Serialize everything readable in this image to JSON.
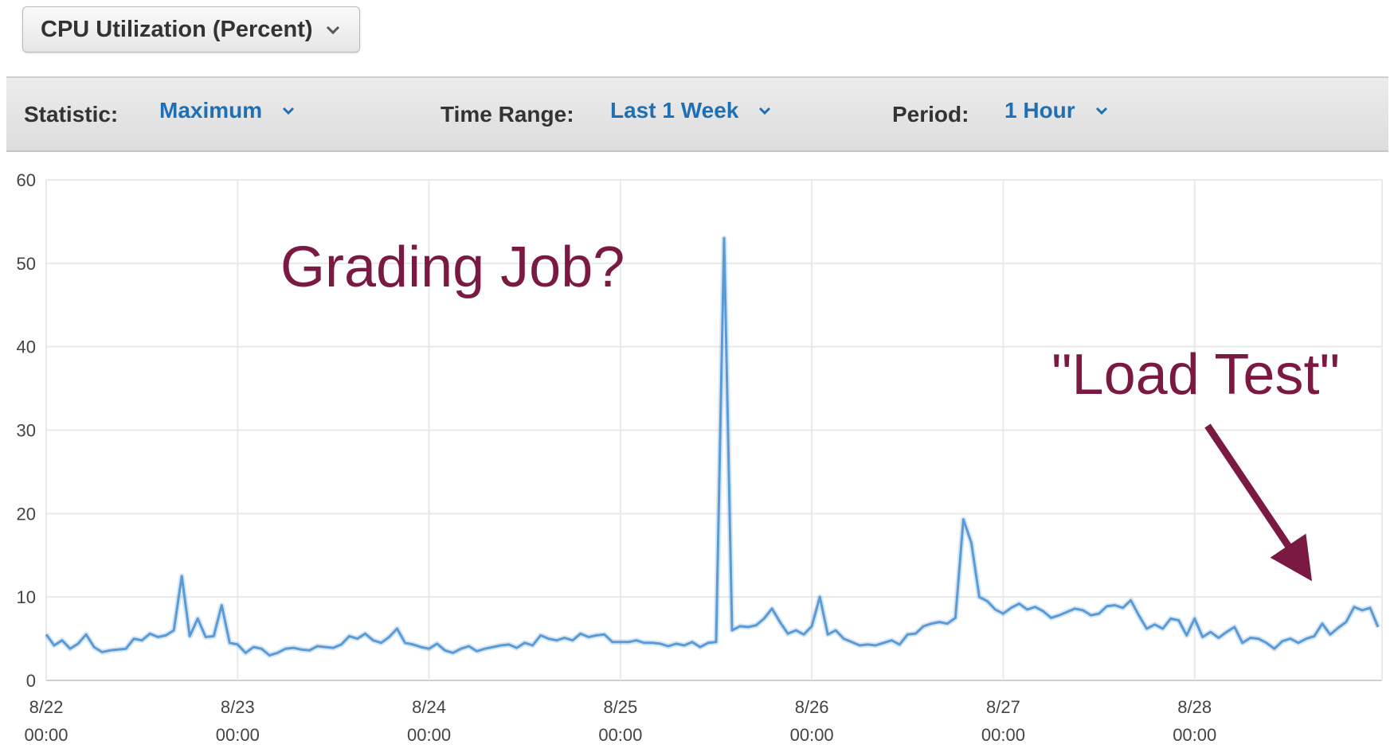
{
  "metric_select": {
    "label": "CPU Utilization (Percent)",
    "icon": "chevron-down-icon"
  },
  "toolbar": {
    "statistic_label": "Statistic:",
    "statistic_value": "Maximum",
    "time_range_label": "Time Range:",
    "time_range_value": "Last 1 Week",
    "period_label": "Period:",
    "period_value": "1 Hour"
  },
  "colors": {
    "line": "#5b9bd5",
    "annotation": "#7a1a42",
    "link": "#1f6fb5"
  },
  "annotations": [
    {
      "text": "Grading Job?"
    },
    {
      "text": "\"Load Test\""
    }
  ],
  "chart_data": {
    "type": "line",
    "grid": true,
    "ylim": [
      0,
      60
    ],
    "yticks": [
      "0",
      "10",
      "20",
      "30",
      "40",
      "50",
      "60"
    ],
    "xlim": [
      0,
      167.5
    ],
    "xticks": [
      {
        "date": "8/22",
        "time": "00:00"
      },
      {
        "date": "8/23",
        "time": "00:00"
      },
      {
        "date": "8/24",
        "time": "00:00"
      },
      {
        "date": "8/25",
        "time": "00:00"
      },
      {
        "date": "8/26",
        "time": "00:00"
      },
      {
        "date": "8/27",
        "time": "00:00"
      },
      {
        "date": "8/28",
        "time": "00:00"
      }
    ],
    "series": [
      {
        "values": [
          [
            0,
            5.5
          ],
          [
            1,
            4.2
          ],
          [
            2,
            4.8
          ],
          [
            3,
            3.8
          ],
          [
            4,
            4.4
          ],
          [
            5,
            5.5
          ],
          [
            6,
            4.0
          ],
          [
            7,
            3.4
          ],
          [
            8,
            3.6
          ],
          [
            10,
            3.8
          ],
          [
            11,
            5.0
          ],
          [
            12,
            4.8
          ],
          [
            13,
            5.6
          ],
          [
            14,
            5.2
          ],
          [
            15,
            5.4
          ],
          [
            16,
            6.0
          ],
          [
            17,
            12.5
          ],
          [
            18,
            5.3
          ],
          [
            19,
            7.4
          ],
          [
            20,
            5.2
          ],
          [
            21,
            5.3
          ],
          [
            22,
            9.0
          ],
          [
            23,
            4.5
          ],
          [
            24,
            4.3
          ],
          [
            25,
            3.3
          ],
          [
            26,
            4.0
          ],
          [
            27,
            3.8
          ],
          [
            28,
            3.0
          ],
          [
            29,
            3.3
          ],
          [
            30,
            3.8
          ],
          [
            31,
            3.9
          ],
          [
            32,
            3.7
          ],
          [
            33,
            3.6
          ],
          [
            34,
            4.1
          ],
          [
            35,
            4.0
          ],
          [
            36,
            3.9
          ],
          [
            37,
            4.3
          ],
          [
            38,
            5.3
          ],
          [
            39,
            5.0
          ],
          [
            40,
            5.6
          ],
          [
            41,
            4.8
          ],
          [
            42,
            4.5
          ],
          [
            43,
            5.2
          ],
          [
            44,
            6.2
          ],
          [
            45,
            4.5
          ],
          [
            46,
            4.3
          ],
          [
            47,
            4.0
          ],
          [
            48,
            3.8
          ],
          [
            49,
            4.4
          ],
          [
            50,
            3.6
          ],
          [
            51,
            3.3
          ],
          [
            52,
            3.8
          ],
          [
            53,
            4.1
          ],
          [
            54,
            3.5
          ],
          [
            55,
            3.8
          ],
          [
            56,
            4.0
          ],
          [
            57,
            4.2
          ],
          [
            58,
            4.3
          ],
          [
            59,
            3.9
          ],
          [
            60,
            4.5
          ],
          [
            61,
            4.2
          ],
          [
            62,
            5.4
          ],
          [
            63,
            5.0
          ],
          [
            64,
            4.8
          ],
          [
            65,
            5.1
          ],
          [
            66,
            4.8
          ],
          [
            67,
            5.6
          ],
          [
            68,
            5.2
          ],
          [
            69,
            5.4
          ],
          [
            70,
            5.5
          ],
          [
            71,
            4.6
          ],
          [
            72,
            4.6
          ],
          [
            73,
            4.6
          ],
          [
            74,
            4.8
          ],
          [
            75,
            4.5
          ],
          [
            76,
            4.5
          ],
          [
            77,
            4.4
          ],
          [
            78,
            4.1
          ],
          [
            79,
            4.4
          ],
          [
            80,
            4.2
          ],
          [
            81,
            4.6
          ],
          [
            82,
            4.0
          ],
          [
            83,
            4.5
          ],
          [
            84,
            4.6
          ],
          [
            85,
            53.0
          ],
          [
            86,
            6.0
          ],
          [
            87,
            6.5
          ],
          [
            88,
            6.4
          ],
          [
            89,
            6.6
          ],
          [
            90,
            7.4
          ],
          [
            91,
            8.6
          ],
          [
            92,
            7.0
          ],
          [
            93,
            5.6
          ],
          [
            94,
            6.0
          ],
          [
            95,
            5.5
          ],
          [
            96,
            6.5
          ],
          [
            97,
            10.0
          ],
          [
            98,
            5.5
          ],
          [
            99,
            6.0
          ],
          [
            100,
            5.0
          ],
          [
            101,
            4.6
          ],
          [
            102,
            4.2
          ],
          [
            103,
            4.3
          ],
          [
            104,
            4.2
          ],
          [
            105,
            4.5
          ],
          [
            106,
            4.8
          ],
          [
            107,
            4.3
          ],
          [
            108,
            5.5
          ],
          [
            109,
            5.6
          ],
          [
            110,
            6.5
          ],
          [
            111,
            6.8
          ],
          [
            112,
            7.0
          ],
          [
            113,
            6.8
          ],
          [
            114,
            7.5
          ],
          [
            115,
            19.3
          ],
          [
            116,
            16.5
          ],
          [
            117,
            10.0
          ],
          [
            118,
            9.5
          ],
          [
            119,
            8.5
          ],
          [
            120,
            8.0
          ],
          [
            121,
            8.7
          ],
          [
            122,
            9.2
          ],
          [
            123,
            8.5
          ],
          [
            124,
            8.8
          ],
          [
            125,
            8.3
          ],
          [
            126,
            7.5
          ],
          [
            127,
            7.8
          ],
          [
            128,
            8.2
          ],
          [
            129,
            8.6
          ],
          [
            130,
            8.4
          ],
          [
            131,
            7.8
          ],
          [
            132,
            8.0
          ],
          [
            133,
            8.9
          ],
          [
            134,
            9.0
          ],
          [
            135,
            8.7
          ],
          [
            136,
            9.6
          ],
          [
            137,
            7.8
          ],
          [
            138,
            6.2
          ],
          [
            139,
            6.7
          ],
          [
            140,
            6.2
          ],
          [
            141,
            7.4
          ],
          [
            142,
            7.2
          ],
          [
            143,
            5.4
          ],
          [
            144,
            7.4
          ],
          [
            145,
            5.2
          ],
          [
            146,
            5.8
          ],
          [
            147,
            5.1
          ],
          [
            148,
            5.8
          ],
          [
            149,
            6.4
          ],
          [
            150,
            4.5
          ],
          [
            151,
            5.1
          ],
          [
            152,
            5.0
          ],
          [
            153,
            4.5
          ],
          [
            154,
            3.8
          ],
          [
            155,
            4.7
          ],
          [
            156,
            5.0
          ],
          [
            157,
            4.5
          ],
          [
            158,
            5.0
          ],
          [
            159,
            5.3
          ],
          [
            160,
            6.8
          ],
          [
            161,
            5.5
          ],
          [
            162,
            6.3
          ],
          [
            163,
            7.0
          ],
          [
            164,
            8.8
          ],
          [
            165,
            8.4
          ],
          [
            166,
            8.7
          ],
          [
            167,
            6.4
          ]
        ]
      }
    ]
  }
}
